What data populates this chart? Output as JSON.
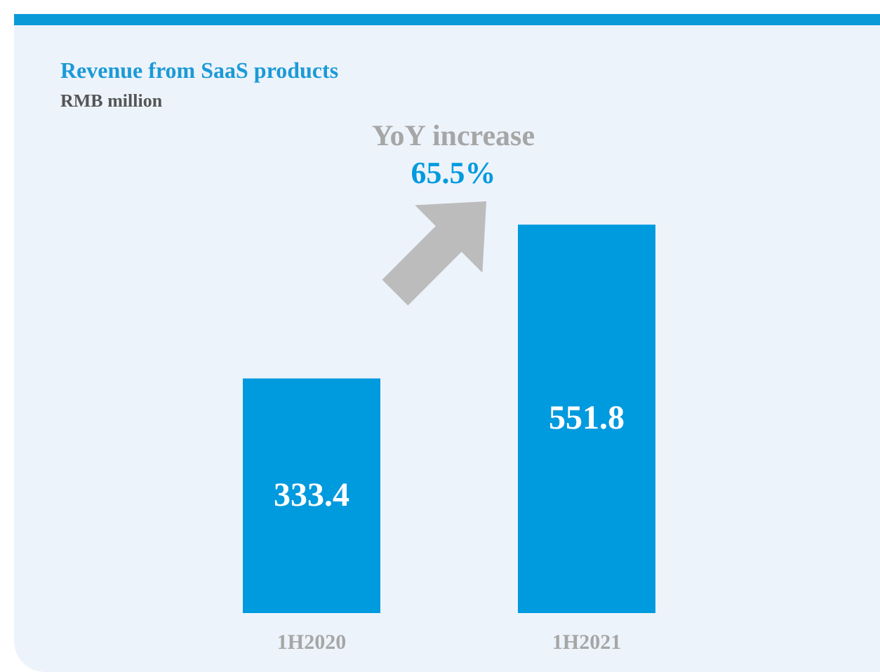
{
  "chart_data": {
    "type": "bar",
    "title": "Revenue from SaaS products",
    "subtitle": "RMB million",
    "categories": [
      "1H2020",
      "1H2021"
    ],
    "values": [
      333.4,
      551.8
    ],
    "color": "#009ade",
    "data_labels": true,
    "tick_labels": "x",
    "annotations": [
      "YoY increase",
      "65.5%"
    ]
  }
}
